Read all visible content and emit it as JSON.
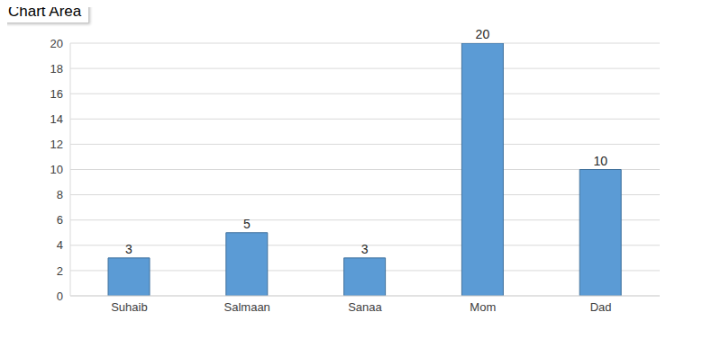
{
  "chart_data": {
    "type": "bar",
    "annotations": [
      "Chart Area"
    ],
    "categories": [
      "Suhaib",
      "Salmaan",
      "Sanaa",
      "Mom",
      "Dad"
    ],
    "values": [
      3,
      5,
      3,
      20,
      10
    ],
    "color": "#5b9bd5",
    "ylim": [
      0,
      20
    ],
    "yticks": [
      0,
      2,
      4,
      6,
      8,
      10,
      12,
      14,
      16,
      18,
      20
    ],
    "grid": true,
    "data_labels": true
  }
}
